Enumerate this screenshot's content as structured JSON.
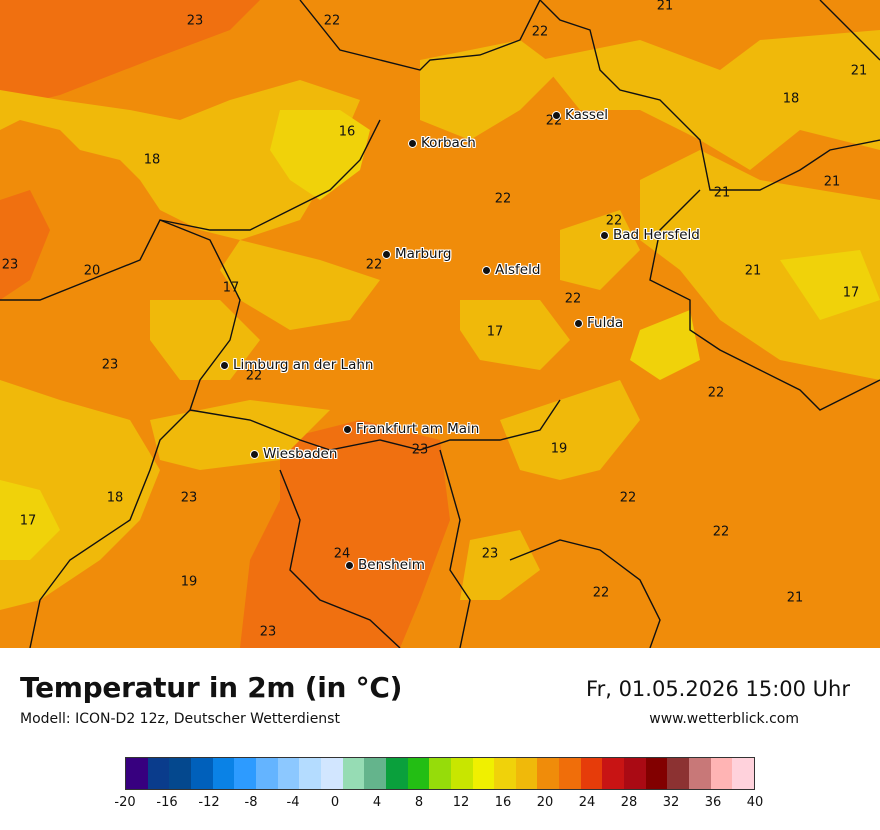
{
  "title": "Temperatur in 2m (in °C)",
  "model": "Modell: ICON-D2 12z, Deutscher Wetterdienst",
  "datetime": "Fr, 01.05.2026 15:00 Uhr",
  "website": "www.wetterblick.com",
  "cities": [
    {
      "name": "Kassel"
    },
    {
      "name": "Korbach"
    },
    {
      "name": "Bad Hersfeld"
    },
    {
      "name": "Marburg"
    },
    {
      "name": "Alsfeld"
    },
    {
      "name": "Fulda"
    },
    {
      "name": "Limburg an der Lahn"
    },
    {
      "name": "Frankfurt am Main"
    },
    {
      "name": "Wiesbaden"
    },
    {
      "name": "Bensheim"
    }
  ],
  "temperature_labels": [
    "23",
    "22",
    "21",
    "22",
    "21",
    "18",
    "16",
    "22",
    "18",
    "21",
    "21",
    "22",
    "22",
    "23",
    "20",
    "22",
    "21",
    "17",
    "22",
    "17",
    "17",
    "23",
    "22",
    "19",
    "18",
    "23",
    "22",
    "17",
    "22",
    "24",
    "23",
    "19",
    "22",
    "21",
    "23"
  ],
  "legend": {
    "colors": [
      "#37007f",
      "#0a3c8c",
      "#04488e",
      "#0060bb",
      "#0a82e6",
      "#2d9bff",
      "#64b4ff",
      "#8cc8ff",
      "#b4dcff",
      "#d2e6ff",
      "#96dcb4",
      "#64b48c",
      "#0aa03c",
      "#23be14",
      "#96dc0a",
      "#c8e600",
      "#f0f000",
      "#f0d20a",
      "#f0b90a",
      "#f08c0a",
      "#f06e0a",
      "#e63c0a",
      "#c81414",
      "#aa0a14",
      "#820000",
      "#8c3232",
      "#c87878",
      "#ffb4b4",
      "#ffd2dc"
    ],
    "ticks": [
      "-20",
      "-16",
      "-12",
      "-8",
      "-4",
      "0",
      "4",
      "8",
      "12",
      "16",
      "20",
      "24",
      "28",
      "32",
      "36",
      "40"
    ]
  }
}
